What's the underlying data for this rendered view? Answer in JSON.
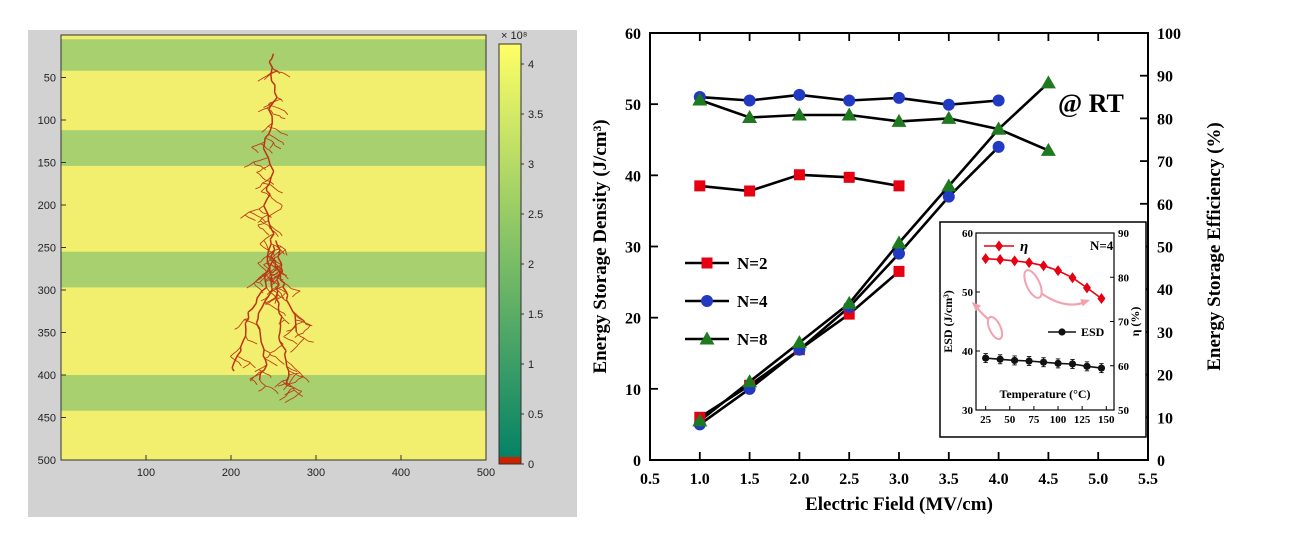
{
  "left_panel": {
    "background": "#d2d2d2",
    "plot_bg": "#f2ef6e",
    "stripe_color": "#a8d06e",
    "tree_color": "#bb3514",
    "axis_color": "#333333",
    "x_range": [
      0,
      500
    ],
    "y_range": [
      0,
      500
    ],
    "x_ticks": [
      100,
      200,
      300,
      400,
      500
    ],
    "y_ticks": [
      50,
      100,
      150,
      200,
      250,
      300,
      350,
      400,
      450,
      500
    ],
    "stripes": [
      [
        5,
        42
      ],
      [
        112,
        154
      ],
      [
        255,
        297
      ],
      [
        400,
        442
      ]
    ],
    "tree": {
      "seed": 13,
      "start_x": 250,
      "start_y": 22,
      "branch_y": 232
    },
    "colorbar": {
      "label": "× 10⁸",
      "ticks": [
        0,
        0.5,
        1,
        1.5,
        2,
        2.5,
        3,
        3.5,
        4
      ],
      "vmax": 4.2,
      "top_color": "#ffff66",
      "mid_color": "#7fbf66",
      "bottom_color": "#008066",
      "zero_color": "#cc2200"
    }
  },
  "chart_data": [
    {
      "type": "line",
      "annotation": "@ RT",
      "xlabel": "Electric Field (MV/cm)",
      "ylabel_left": "Energy Storage Density (J/cm³)",
      "ylabel_right": "Energy Storage Efficiency (%)",
      "xlim": [
        0.5,
        5.5
      ],
      "ylim_left": [
        0,
        60
      ],
      "ylim_right": [
        0,
        100
      ],
      "x_ticks": [
        0.5,
        1.0,
        1.5,
        2.0,
        2.5,
        3.0,
        3.5,
        4.0,
        4.5,
        5.0,
        5.5
      ],
      "y_ticks_left": [
        0,
        10,
        20,
        30,
        40,
        50,
        60
      ],
      "y_ticks_right": [
        0,
        10,
        20,
        30,
        40,
        50,
        60,
        70,
        80,
        90,
        100
      ],
      "line_color": "#000000",
      "legend": [
        {
          "label": "N=2",
          "marker": "square",
          "color": "#e60012"
        },
        {
          "label": "N=4",
          "marker": "circle",
          "color": "#2239c4"
        },
        {
          "label": "N=8",
          "marker": "triangle",
          "color": "#1f7a1f"
        }
      ],
      "series": [
        {
          "name": "ESD N=2",
          "axis": "left",
          "marker": "square",
          "color": "#e60012",
          "x": [
            1.0,
            1.5,
            2.0,
            2.5,
            3.0
          ],
          "y": [
            6.0,
            10.5,
            15.5,
            20.5,
            26.5
          ]
        },
        {
          "name": "ESD N=4",
          "axis": "left",
          "marker": "circle",
          "color": "#2239c4",
          "x": [
            1.0,
            1.5,
            2.0,
            2.5,
            3.0,
            3.5,
            4.0
          ],
          "y": [
            5.0,
            10.0,
            15.5,
            21.5,
            29.0,
            37.0,
            44.0
          ]
        },
        {
          "name": "ESD N=8",
          "axis": "left",
          "marker": "triangle",
          "color": "#1f7a1f",
          "x": [
            1.0,
            1.5,
            2.0,
            2.5,
            3.0,
            3.5,
            4.0,
            4.5
          ],
          "y": [
            5.5,
            11.0,
            16.5,
            22.0,
            30.5,
            38.5,
            46.5,
            53.0
          ]
        },
        {
          "name": "Efficiency N=2",
          "axis": "right",
          "marker": "square",
          "color": "#e60012",
          "x": [
            1.0,
            1.5,
            2.0,
            2.5,
            3.0
          ],
          "y": [
            64.2,
            63.0,
            66.8,
            66.2,
            64.2
          ]
        },
        {
          "name": "Efficiency N=4",
          "axis": "right",
          "marker": "circle",
          "color": "#2239c4",
          "x": [
            1.0,
            1.5,
            2.0,
            2.5,
            3.0,
            3.5,
            4.0
          ],
          "y": [
            85.0,
            84.2,
            85.5,
            84.2,
            84.8,
            83.2,
            84.2
          ]
        },
        {
          "name": "Efficiency N=8",
          "axis": "right",
          "marker": "triangle",
          "color": "#1f7a1f",
          "x": [
            1.0,
            1.5,
            2.0,
            2.5,
            3.0,
            3.5,
            4.0,
            4.5
          ],
          "y": [
            84.3,
            80.2,
            80.8,
            80.8,
            79.3,
            80.0,
            77.5,
            72.5
          ]
        }
      ]
    },
    {
      "type": "line",
      "label": "N=4",
      "xlabel": "Temperature (°C)",
      "ylabel_left": "ESD (J/cm³)",
      "ylabel_right": "η (%)",
      "xlim": [
        15,
        158
      ],
      "ylim_left": [
        30,
        60
      ],
      "ylim_right": [
        50,
        90
      ],
      "x_ticks": [
        25,
        50,
        75,
        100,
        125,
        150
      ],
      "y_ticks_left": [
        30,
        40,
        50,
        60
      ],
      "y_ticks_right": [
        50,
        60,
        70,
        80,
        90
      ],
      "annotation_color": "#f2a2ae",
      "series": [
        {
          "name": "η",
          "axis": "right",
          "marker": "diamond",
          "color": "#e60012",
          "x": [
            25,
            40,
            55,
            70,
            85,
            100,
            115,
            130,
            145
          ],
          "y": [
            84.2,
            84.0,
            83.7,
            83.3,
            82.6,
            81.5,
            79.9,
            77.6,
            75.2
          ]
        },
        {
          "name": "ESD",
          "axis": "left",
          "marker": "circle",
          "color": "#111111",
          "yerr": 0.8,
          "x": [
            25,
            40,
            55,
            70,
            85,
            100,
            115,
            130,
            145
          ],
          "y": [
            38.8,
            38.6,
            38.4,
            38.3,
            38.1,
            37.9,
            37.8,
            37.4,
            37.1
          ]
        }
      ]
    }
  ]
}
